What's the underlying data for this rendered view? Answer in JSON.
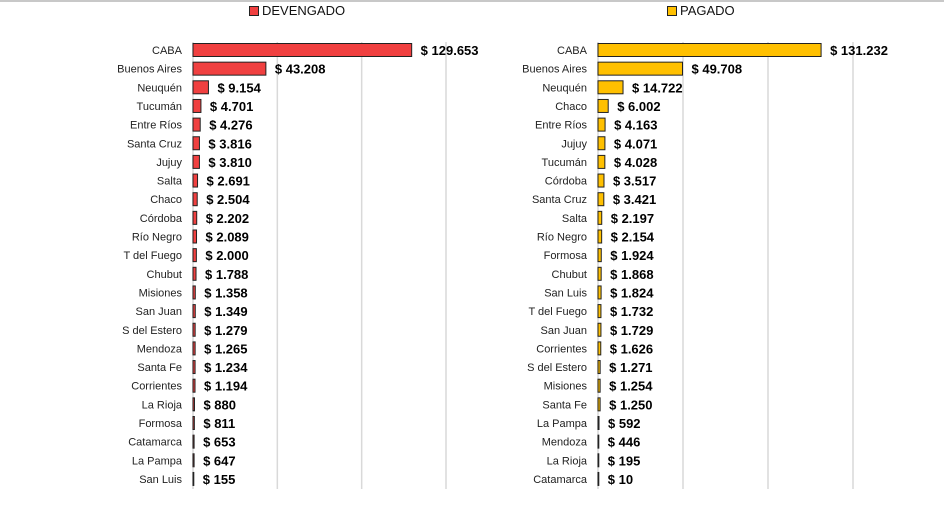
{
  "chart_data": [
    {
      "type": "bar",
      "orientation": "horizontal",
      "legend": "DEVENGADO",
      "legend_placement": "top",
      "color": "#f04040",
      "xlim": [
        0,
        150000
      ],
      "grid": true,
      "categories": [
        "CABA",
        "Buenos Aires",
        "Neuquén",
        "Tucumán",
        "Entre Ríos",
        "Santa Cruz",
        "Jujuy",
        "Salta",
        "Chaco",
        "Córdoba",
        "Río Negro",
        "T del Fuego",
        "Chubut",
        "Misiones",
        "San Juan",
        "S del Estero",
        "Mendoza",
        "Santa Fe",
        "Corrientes",
        "La Rioja",
        "Formosa",
        "Catamarca",
        "La Pampa",
        "San Luis"
      ],
      "values": [
        129653,
        43208,
        9154,
        4701,
        4276,
        3816,
        3810,
        2691,
        2504,
        2202,
        2089,
        2000,
        1788,
        1358,
        1349,
        1279,
        1265,
        1234,
        1194,
        880,
        811,
        653,
        647,
        155
      ],
      "labels": [
        "$ 129.653",
        "$ 43.208",
        "$ 9.154",
        "$ 4.701",
        "$ 4.276",
        "$ 3.816",
        "$ 3.810",
        "$ 2.691",
        "$ 2.504",
        "$ 2.202",
        "$ 2.089",
        "$ 2.000",
        "$ 1.788",
        "$ 1.358",
        "$ 1.349",
        "$ 1.279",
        "$ 1.265",
        "$ 1.234",
        "$ 1.194",
        "$ 880",
        "$ 811",
        "$ 653",
        "$ 647",
        "$ 155"
      ]
    },
    {
      "type": "bar",
      "orientation": "horizontal",
      "legend": "PAGADO",
      "legend_placement": "top",
      "color": "#ffc000",
      "xlim": [
        0,
        150000
      ],
      "grid": true,
      "categories": [
        "CABA",
        "Buenos Aires",
        "Neuquén",
        "Chaco",
        "Entre Ríos",
        "Jujuy",
        "Tucumán",
        "Córdoba",
        "Santa Cruz",
        "Salta",
        "Río Negro",
        "Formosa",
        "Chubut",
        "San Luis",
        "T del Fuego",
        "San Juan",
        "Corrientes",
        "S del Estero",
        "Misiones",
        "Santa Fe",
        "La Pampa",
        "Mendoza",
        "La Rioja",
        "Catamarca"
      ],
      "values": [
        131232,
        49708,
        14722,
        6002,
        4163,
        4071,
        4028,
        3517,
        3421,
        2197,
        2154,
        1924,
        1868,
        1824,
        1732,
        1729,
        1626,
        1271,
        1254,
        1250,
        592,
        446,
        195,
        10
      ],
      "labels": [
        "$ 131.232",
        "$ 49.708",
        "$ 14.722",
        "$ 6.002",
        "$ 4.163",
        "$ 4.071",
        "$ 4.028",
        "$ 3.517",
        "$ 3.421",
        "$ 2.197",
        "$ 2.154",
        "$ 1.924",
        "$ 1.868",
        "$ 1.824",
        "$ 1.732",
        "$ 1.729",
        "$ 1.626",
        "$ 1.271",
        "$ 1.254",
        "$ 1.250",
        "$ 592",
        "$ 446",
        "$ 195",
        "$ 10"
      ]
    }
  ]
}
